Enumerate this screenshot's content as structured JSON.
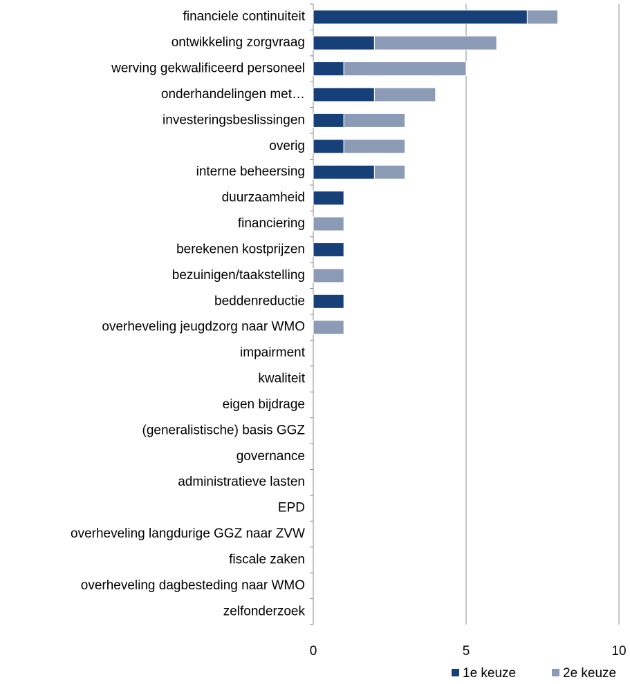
{
  "chart_data": {
    "type": "stacked-barh",
    "categories": [
      "financiele continuiteit",
      "ontwikkeling zorgvraag",
      "werving gekwalificeerd personeel",
      "onderhandelingen met…",
      "investeringsbeslissingen",
      "overig",
      "interne beheersing",
      "duurzaamheid",
      "financiering",
      "berekenen kostprijzen",
      "bezuinigen/taakstelling",
      "beddenreductie",
      "overheveling jeugdzorg naar WMO",
      "impairment",
      "kwaliteit",
      "eigen bijdrage",
      "(generalistische) basis GGZ",
      "governance",
      "administratieve lasten",
      "EPD",
      "overheveling langdurige GGZ naar ZVW",
      "fiscale zaken",
      "overheveling dagbesteding naar WMO",
      "zelfonderzoek"
    ],
    "series": [
      {
        "name": "1e keuze",
        "color": "#173f78",
        "values": [
          7,
          2,
          1,
          2,
          1,
          1,
          2,
          1,
          0,
          1,
          0,
          1,
          0,
          0,
          0,
          0,
          0,
          0,
          0,
          0,
          0,
          0,
          0,
          0
        ]
      },
      {
        "name": "2e keuze",
        "color": "#8b9ab5",
        "values": [
          1,
          4,
          4,
          2,
          2,
          2,
          1,
          0,
          1,
          0,
          1,
          0,
          1,
          0,
          0,
          0,
          0,
          0,
          0,
          0,
          0,
          0,
          0,
          0
        ]
      }
    ],
    "xlim": [
      0,
      10
    ],
    "xticks": [
      0,
      5,
      10
    ],
    "grid": true,
    "legend": "bottom-right"
  }
}
